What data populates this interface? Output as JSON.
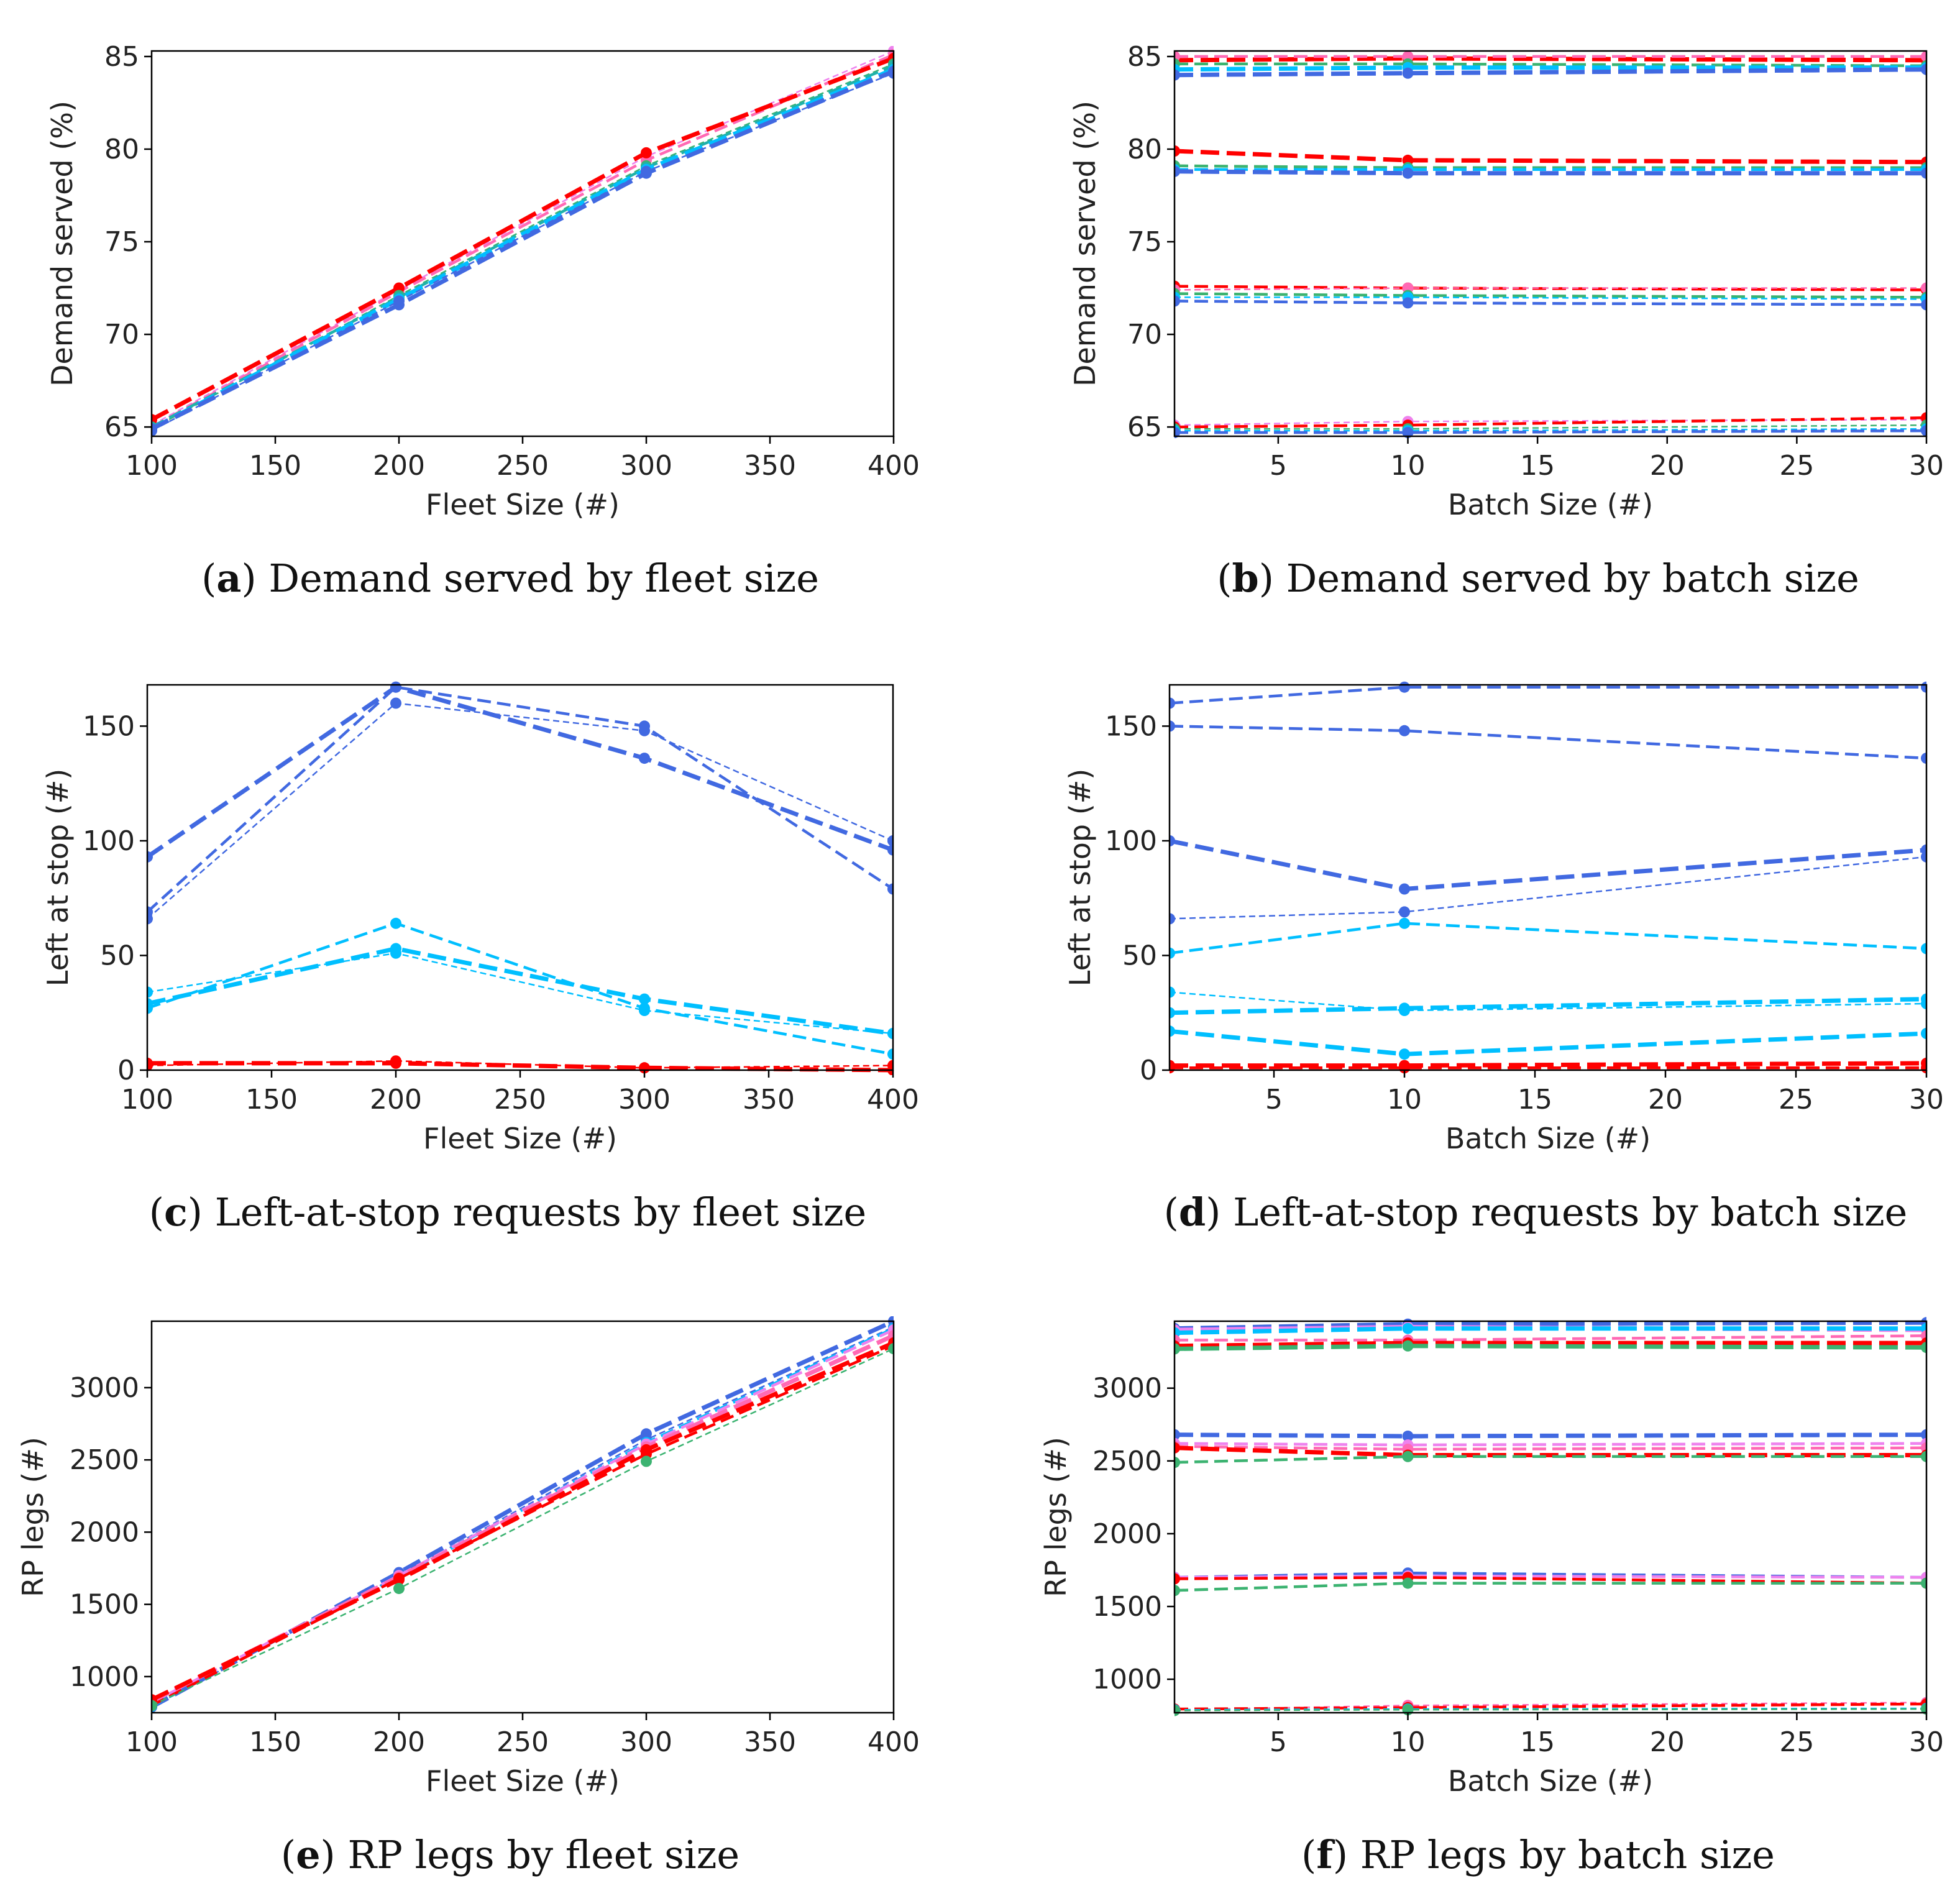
{
  "figure": {
    "panels_order": [
      "a",
      "b",
      "c",
      "d",
      "e",
      "f"
    ]
  },
  "chart_data": [
    {
      "id": "a",
      "type": "line",
      "caption_letter": "a",
      "caption_text": "Demand served by fleet size",
      "xlabel": "Fleet Size (#)",
      "ylabel": "Demand served (%)",
      "xlim": [
        100,
        400
      ],
      "ylim": [
        64.5,
        85.3
      ],
      "xticks": [
        100,
        150,
        200,
        250,
        300,
        350,
        400
      ],
      "yticks": [
        65,
        70,
        75,
        80,
        85
      ],
      "x": [
        100,
        200,
        300,
        400
      ],
      "series": [
        {
          "name": "b1-violet",
          "color": "#ee82ee",
          "dash": "thin",
          "values": [
            65.1,
            72.4,
            79.6,
            85.3
          ]
        },
        {
          "name": "b10-pink",
          "color": "#ff69b4",
          "dash": "med",
          "values": [
            65.0,
            72.3,
            79.4,
            85.1
          ]
        },
        {
          "name": "b30-red",
          "color": "#ff0000",
          "dash": "thick",
          "values": [
            65.4,
            72.5,
            79.8,
            84.9
          ]
        },
        {
          "name": "b1-green",
          "color": "#3cb371",
          "dash": "thin",
          "values": [
            64.9,
            72.1,
            79.1,
            84.6
          ]
        },
        {
          "name": "b10-teal",
          "color": "#20b2aa",
          "dash": "med",
          "values": [
            65.0,
            72.0,
            79.0,
            84.5
          ]
        },
        {
          "name": "b30-sky",
          "color": "#00bfff",
          "dash": "thick",
          "values": [
            64.9,
            71.9,
            78.9,
            84.3
          ]
        },
        {
          "name": "b1-blue",
          "color": "#4169e1",
          "dash": "thin",
          "values": [
            64.8,
            71.8,
            78.8,
            84.1
          ]
        },
        {
          "name": "b30-blue",
          "color": "#4169e1",
          "dash": "thick",
          "values": [
            64.9,
            71.6,
            78.7,
            84.2
          ]
        }
      ]
    },
    {
      "id": "b",
      "type": "line",
      "caption_letter": "b",
      "caption_text": "Demand served by batch size",
      "xlabel": "Batch Size (#)",
      "ylabel": "Demand served (%)",
      "xlim": [
        1,
        30
      ],
      "ylim": [
        64.5,
        85.3
      ],
      "xticks": [
        5,
        10,
        15,
        20,
        25,
        30
      ],
      "yticks": [
        65,
        70,
        75,
        80,
        85
      ],
      "x": [
        1,
        10,
        30
      ],
      "series": [
        {
          "name": "f400-red",
          "color": "#ff0000",
          "dash": "thick",
          "values": [
            84.8,
            84.9,
            84.8
          ]
        },
        {
          "name": "f400-pink",
          "color": "#ff69b4",
          "dash": "med",
          "values": [
            85.0,
            85.0,
            85.0
          ]
        },
        {
          "name": "f400-green",
          "color": "#3cb371",
          "dash": "med",
          "values": [
            84.6,
            84.6,
            84.5
          ]
        },
        {
          "name": "f400-sky",
          "color": "#00bfff",
          "dash": "thick",
          "values": [
            84.3,
            84.4,
            84.4
          ]
        },
        {
          "name": "f400-blue",
          "color": "#4169e1",
          "dash": "thick",
          "values": [
            84.0,
            84.1,
            84.3
          ]
        },
        {
          "name": "f300-red",
          "color": "#ff0000",
          "dash": "thick",
          "values": [
            79.9,
            79.4,
            79.3
          ]
        },
        {
          "name": "f300-green",
          "color": "#3cb371",
          "dash": "med",
          "values": [
            79.1,
            79.0,
            79.0
          ]
        },
        {
          "name": "f300-sky",
          "color": "#00bfff",
          "dash": "med",
          "values": [
            78.9,
            78.9,
            78.9
          ]
        },
        {
          "name": "f300-blue",
          "color": "#4169e1",
          "dash": "thick",
          "values": [
            78.8,
            78.7,
            78.7
          ]
        },
        {
          "name": "f200-red",
          "color": "#ff0000",
          "dash": "med",
          "values": [
            72.6,
            72.5,
            72.4
          ]
        },
        {
          "name": "f200-pink",
          "color": "#ff69b4",
          "dash": "thin",
          "values": [
            72.4,
            72.5,
            72.5
          ]
        },
        {
          "name": "f200-green",
          "color": "#3cb371",
          "dash": "med",
          "values": [
            72.2,
            72.1,
            72.0
          ]
        },
        {
          "name": "f200-sky",
          "color": "#00bfff",
          "dash": "thin",
          "values": [
            72.0,
            72.0,
            71.9
          ]
        },
        {
          "name": "f200-blue",
          "color": "#4169e1",
          "dash": "med",
          "values": [
            71.8,
            71.7,
            71.6
          ]
        },
        {
          "name": "f100-violet",
          "color": "#ee82ee",
          "dash": "thin",
          "values": [
            65.1,
            65.3,
            65.4
          ]
        },
        {
          "name": "f100-red",
          "color": "#ff0000",
          "dash": "med",
          "values": [
            65.0,
            65.1,
            65.5
          ]
        },
        {
          "name": "f100-green",
          "color": "#3cb371",
          "dash": "thin",
          "values": [
            64.9,
            64.9,
            65.1
          ]
        },
        {
          "name": "f100-sky",
          "color": "#00bfff",
          "dash": "thin",
          "values": [
            64.8,
            64.8,
            64.9
          ]
        },
        {
          "name": "f100-blue",
          "color": "#4169e1",
          "dash": "med",
          "values": [
            64.7,
            64.7,
            64.8
          ]
        }
      ]
    },
    {
      "id": "c",
      "type": "line",
      "caption_letter": "c",
      "caption_text": "Left-at-stop requests by fleet size",
      "xlabel": "Fleet Size (#)",
      "ylabel": "Left at stop (#)",
      "xlim": [
        100,
        400
      ],
      "ylim": [
        0,
        168
      ],
      "xticks": [
        100,
        150,
        200,
        250,
        300,
        350,
        400
      ],
      "yticks": [
        0,
        50,
        100,
        150
      ],
      "x": [
        100,
        200,
        300,
        400
      ],
      "series": [
        {
          "name": "blue-b1",
          "color": "#4169e1",
          "dash": "thin",
          "values": [
            66,
            160,
            148,
            100
          ]
        },
        {
          "name": "blue-b10",
          "color": "#4169e1",
          "dash": "med",
          "values": [
            69,
            167,
            150,
            79
          ]
        },
        {
          "name": "blue-b30",
          "color": "#4169e1",
          "dash": "thick",
          "values": [
            93,
            167,
            136,
            96
          ]
        },
        {
          "name": "sky-b1",
          "color": "#00bfff",
          "dash": "thin",
          "values": [
            34,
            51,
            26,
            16
          ]
        },
        {
          "name": "sky-b10",
          "color": "#00bfff",
          "dash": "med",
          "values": [
            27,
            64,
            27,
            7
          ]
        },
        {
          "name": "sky-b30",
          "color": "#00bfff",
          "dash": "thick",
          "values": [
            29,
            53,
            31,
            16
          ]
        },
        {
          "name": "red-b1",
          "color": "#ff0000",
          "dash": "thin",
          "values": [
            2,
            4,
            1,
            2
          ]
        },
        {
          "name": "red-b30",
          "color": "#ff0000",
          "dash": "thick",
          "values": [
            3,
            3,
            1,
            0
          ]
        }
      ]
    },
    {
      "id": "d",
      "type": "line",
      "caption_letter": "d",
      "caption_text": "Left-at-stop requests by batch size",
      "xlabel": "Batch Size (#)",
      "ylabel": "Left at stop (#)",
      "xlim": [
        1,
        30
      ],
      "ylim": [
        0,
        168
      ],
      "xticks": [
        5,
        10,
        15,
        20,
        25,
        30
      ],
      "yticks": [
        0,
        50,
        100,
        150
      ],
      "x": [
        1,
        10,
        30
      ],
      "series": [
        {
          "name": "f200-blue",
          "color": "#4169e1",
          "dash": "med",
          "values": [
            160,
            167,
            167
          ]
        },
        {
          "name": "f300-blue",
          "color": "#4169e1",
          "dash": "med",
          "values": [
            150,
            148,
            136
          ]
        },
        {
          "name": "f400-blue",
          "color": "#4169e1",
          "dash": "thick",
          "values": [
            100,
            79,
            96
          ]
        },
        {
          "name": "f100-blue",
          "color": "#4169e1",
          "dash": "thin",
          "values": [
            66,
            69,
            93
          ]
        },
        {
          "name": "f200-sky",
          "color": "#00bfff",
          "dash": "med",
          "values": [
            51,
            64,
            53
          ]
        },
        {
          "name": "f100-sky",
          "color": "#00bfff",
          "dash": "thin",
          "values": [
            34,
            26,
            29
          ]
        },
        {
          "name": "f300-sky",
          "color": "#00bfff",
          "dash": "thick",
          "values": [
            25,
            27,
            31
          ]
        },
        {
          "name": "f400-sky",
          "color": "#00bfff",
          "dash": "thick",
          "values": [
            17,
            7,
            16
          ]
        },
        {
          "name": "red-a",
          "color": "#ff0000",
          "dash": "thick",
          "values": [
            2,
            2,
            3
          ]
        },
        {
          "name": "red-b",
          "color": "#ff0000",
          "dash": "med",
          "values": [
            1,
            1,
            1
          ]
        }
      ]
    },
    {
      "id": "e",
      "type": "line",
      "caption_letter": "e",
      "caption_text": "RP legs by fleet size",
      "xlabel": "Fleet Size (#)",
      "ylabel": "RP legs (#)",
      "xlim": [
        100,
        400
      ],
      "ylim": [
        750,
        3460
      ],
      "xticks": [
        100,
        150,
        200,
        250,
        300,
        350,
        400
      ],
      "yticks": [
        1000,
        1500,
        2000,
        2500,
        3000
      ],
      "x": [
        100,
        200,
        300,
        400
      ],
      "series": [
        {
          "name": "blue-b30",
          "color": "#4169e1",
          "dash": "thick",
          "values": [
            790,
            1720,
            2680,
            3460
          ]
        },
        {
          "name": "blue-b1",
          "color": "#4169e1",
          "dash": "thin",
          "values": [
            790,
            1700,
            2640,
            3420
          ]
        },
        {
          "name": "sky-b10",
          "color": "#00bfff",
          "dash": "med",
          "values": [
            795,
            1690,
            2620,
            3410
          ]
        },
        {
          "name": "violet-b10",
          "color": "#ee82ee",
          "dash": "med",
          "values": [
            820,
            1700,
            2610,
            3400
          ]
        },
        {
          "name": "pink-b30",
          "color": "#ff69b4",
          "dash": "thick",
          "values": [
            830,
            1690,
            2590,
            3360
          ]
        },
        {
          "name": "red-b30",
          "color": "#ff0000",
          "dash": "thick",
          "values": [
            840,
            1670,
            2570,
            3310
          ]
        },
        {
          "name": "red-b1",
          "color": "#ff0000",
          "dash": "med",
          "values": [
            800,
            1680,
            2540,
            3290
          ]
        },
        {
          "name": "green-b1",
          "color": "#3cb371",
          "dash": "thin",
          "values": [
            800,
            1610,
            2490,
            3270
          ]
        }
      ]
    },
    {
      "id": "f",
      "type": "line",
      "caption_letter": "f",
      "caption_text": "RP legs by batch size",
      "xlabel": "Batch Size (#)",
      "ylabel": "RP legs (#)",
      "xlim": [
        1,
        30
      ],
      "ylim": [
        770,
        3460
      ],
      "xticks": [
        5,
        10,
        15,
        20,
        25,
        30
      ],
      "yticks": [
        1000,
        1500,
        2000,
        2500,
        3000
      ],
      "x": [
        1,
        10,
        30
      ],
      "series": [
        {
          "name": "f400-blue",
          "color": "#4169e1",
          "dash": "thick",
          "values": [
            3410,
            3440,
            3450
          ]
        },
        {
          "name": "f400-violet",
          "color": "#ee82ee",
          "dash": "thick",
          "values": [
            3400,
            3420,
            3400
          ]
        },
        {
          "name": "f400-sky",
          "color": "#00bfff",
          "dash": "thick",
          "values": [
            3380,
            3410,
            3410
          ]
        },
        {
          "name": "f400-pink",
          "color": "#ff69b4",
          "dash": "med",
          "values": [
            3330,
            3330,
            3360
          ]
        },
        {
          "name": "f400-red",
          "color": "#ff0000",
          "dash": "thick",
          "values": [
            3290,
            3310,
            3310
          ]
        },
        {
          "name": "f400-green",
          "color": "#3cb371",
          "dash": "thick",
          "values": [
            3270,
            3290,
            3280
          ]
        },
        {
          "name": "f300-blue",
          "color": "#4169e1",
          "dash": "thick",
          "values": [
            2680,
            2670,
            2680
          ]
        },
        {
          "name": "f300-violet",
          "color": "#ee82ee",
          "dash": "med",
          "values": [
            2620,
            2610,
            2620
          ]
        },
        {
          "name": "f300-pink",
          "color": "#ff69b4",
          "dash": "med",
          "values": [
            2600,
            2580,
            2590
          ]
        },
        {
          "name": "f300-red",
          "color": "#ff0000",
          "dash": "thick",
          "values": [
            2590,
            2540,
            2540
          ]
        },
        {
          "name": "f300-green",
          "color": "#3cb371",
          "dash": "med",
          "values": [
            2490,
            2530,
            2530
          ]
        },
        {
          "name": "f200-blue",
          "color": "#4169e1",
          "dash": "med",
          "values": [
            1700,
            1730,
            1700
          ]
        },
        {
          "name": "f200-violet",
          "color": "#ee82ee",
          "dash": "med",
          "values": [
            1700,
            1710,
            1700
          ]
        },
        {
          "name": "f200-red",
          "color": "#ff0000",
          "dash": "med",
          "values": [
            1690,
            1700,
            1660
          ]
        },
        {
          "name": "f200-green",
          "color": "#3cb371",
          "dash": "med",
          "values": [
            1610,
            1660,
            1660
          ]
        },
        {
          "name": "f100-pink",
          "color": "#ff69b4",
          "dash": "thin",
          "values": [
            790,
            820,
            840
          ]
        },
        {
          "name": "f100-red",
          "color": "#ff0000",
          "dash": "med",
          "values": [
            795,
            805,
            830
          ]
        },
        {
          "name": "f100-sky",
          "color": "#00bfff",
          "dash": "thin",
          "values": [
            790,
            795,
            800
          ]
        },
        {
          "name": "f100-green",
          "color": "#3cb371",
          "dash": "thin",
          "values": [
            785,
            790,
            795
          ]
        }
      ]
    }
  ]
}
